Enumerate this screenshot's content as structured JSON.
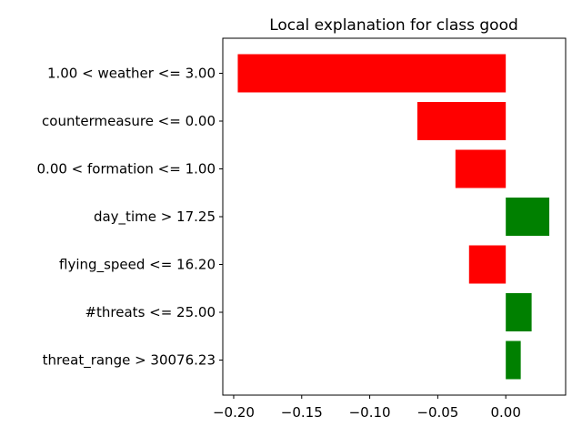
{
  "chart_data": {
    "type": "bar",
    "orientation": "horizontal",
    "title": "Local explanation for class good",
    "xlabel": "",
    "ylabel": "",
    "categories": [
      "1.00 < weather <= 3.00",
      "countermeasure <= 0.00",
      "0.00 < formation <= 1.00",
      "day_time > 17.25",
      "flying_speed <= 16.20",
      "#threats <= 25.00",
      "threat_range > 30076.23"
    ],
    "values": [
      -0.197,
      -0.065,
      -0.037,
      0.032,
      -0.027,
      0.019,
      0.011
    ],
    "xlim": [
      -0.208,
      0.044
    ],
    "xticks": [
      -0.2,
      -0.15,
      -0.1,
      -0.05,
      0.0
    ],
    "xtick_labels": [
      "−0.20",
      "−0.15",
      "−0.10",
      "−0.05",
      "0.00"
    ],
    "grid": false,
    "colors": {
      "positive": "#008000",
      "negative": "#ff0000"
    }
  }
}
